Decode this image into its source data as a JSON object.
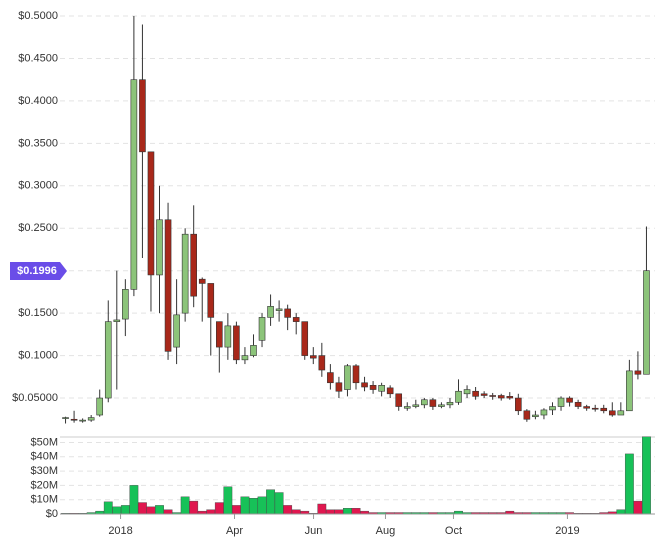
{
  "chart_data": {
    "type": "candlestick",
    "open": [
      0.026,
      0.025,
      0.023,
      0.024,
      0.03,
      0.05,
      0.14,
      0.143,
      0.178,
      0.425,
      0.34,
      0.195,
      0.26,
      0.11,
      0.15,
      0.243,
      0.19,
      0.185,
      0.14,
      0.11,
      0.135,
      0.095,
      0.1,
      0.118,
      0.145,
      0.153,
      0.155,
      0.145,
      0.14,
      0.1,
      0.1,
      0.08,
      0.068,
      0.06,
      0.088,
      0.068,
      0.065,
      0.058,
      0.062,
      0.055,
      0.038,
      0.04,
      0.042,
      0.048,
      0.04,
      0.042,
      0.045,
      0.055,
      0.058,
      0.055,
      0.053,
      0.053,
      0.052,
      0.05,
      0.035,
      0.028,
      0.03,
      0.036,
      0.04,
      0.05,
      0.045,
      0.04,
      0.038,
      0.038,
      0.035,
      0.03,
      0.035,
      0.082,
      0.078
    ],
    "high": [
      0.028,
      0.035,
      0.026,
      0.03,
      0.06,
      0.165,
      0.2,
      0.19,
      0.5,
      0.49,
      0.34,
      0.3,
      0.28,
      0.19,
      0.25,
      0.277,
      0.192,
      0.185,
      0.14,
      0.15,
      0.14,
      0.11,
      0.125,
      0.15,
      0.172,
      0.165,
      0.16,
      0.15,
      0.14,
      0.11,
      0.115,
      0.09,
      0.075,
      0.09,
      0.09,
      0.075,
      0.07,
      0.068,
      0.065,
      0.055,
      0.045,
      0.048,
      0.05,
      0.05,
      0.045,
      0.05,
      0.072,
      0.065,
      0.063,
      0.058,
      0.056,
      0.055,
      0.057,
      0.055,
      0.037,
      0.035,
      0.038,
      0.045,
      0.052,
      0.052,
      0.048,
      0.042,
      0.042,
      0.042,
      0.045,
      0.045,
      0.095,
      0.105,
      0.252
    ],
    "low": [
      0.02,
      0.021,
      0.021,
      0.022,
      0.028,
      0.045,
      0.06,
      0.123,
      0.17,
      0.215,
      0.152,
      0.15,
      0.095,
      0.09,
      0.14,
      0.157,
      0.14,
      0.1,
      0.08,
      0.095,
      0.09,
      0.09,
      0.098,
      0.11,
      0.135,
      0.14,
      0.13,
      0.125,
      0.095,
      0.09,
      0.075,
      0.06,
      0.05,
      0.052,
      0.06,
      0.058,
      0.055,
      0.052,
      0.05,
      0.035,
      0.035,
      0.038,
      0.038,
      0.036,
      0.038,
      0.038,
      0.042,
      0.05,
      0.048,
      0.05,
      0.048,
      0.047,
      0.048,
      0.03,
      0.022,
      0.025,
      0.025,
      0.03,
      0.035,
      0.04,
      0.037,
      0.035,
      0.034,
      0.032,
      0.028,
      0.03,
      0.035,
      0.072,
      0.078
    ],
    "close": [
      0.027,
      0.024,
      0.024,
      0.027,
      0.05,
      0.14,
      0.142,
      0.178,
      0.425,
      0.34,
      0.195,
      0.26,
      0.105,
      0.148,
      0.243,
      0.17,
      0.185,
      0.145,
      0.11,
      0.135,
      0.095,
      0.1,
      0.112,
      0.145,
      0.158,
      0.155,
      0.145,
      0.14,
      0.1,
      0.097,
      0.083,
      0.068,
      0.058,
      0.088,
      0.068,
      0.063,
      0.06,
      0.065,
      0.055,
      0.04,
      0.04,
      0.042,
      0.048,
      0.04,
      0.042,
      0.045,
      0.058,
      0.06,
      0.052,
      0.053,
      0.052,
      0.05,
      0.05,
      0.035,
      0.025,
      0.03,
      0.036,
      0.04,
      0.05,
      0.045,
      0.04,
      0.038,
      0.037,
      0.035,
      0.03,
      0.035,
      0.082,
      0.078,
      0.2
    ],
    "volume": [
      500000,
      500000,
      500000,
      1000000,
      2000000,
      8500000,
      5000000,
      6000000,
      20000000,
      8000000,
      5000000,
      6000000,
      3000000,
      1000000,
      12000000,
      9000000,
      2000000,
      3000000,
      8000000,
      19000000,
      6000000,
      12000000,
      11000000,
      12000000,
      17000000,
      15000000,
      6000000,
      3000000,
      2000000,
      500000,
      7000000,
      3000000,
      3000000,
      4000000,
      4000000,
      2000000,
      1000000,
      1000000,
      1000000,
      1000000,
      1000000,
      1000000,
      1000000,
      1000000,
      1000000,
      1000000,
      2000000,
      1000000,
      1000000,
      1000000,
      1000000,
      1000000,
      2000000,
      1000000,
      1000000,
      1000000,
      1000000,
      1000000,
      1000000,
      1000000,
      500000,
      500000,
      500000,
      1000000,
      1500000,
      3000000,
      42000000,
      9000000,
      54000000
    ],
    "up_color": "#8cc47a",
    "down_color": "#a8281a",
    "volume_up_color": "#17c158",
    "volume_down_color": "#e0174f",
    "xlim": [
      -1,
      69
    ],
    "xticks": [
      {
        "value": 6.44,
        "label": "2018"
      },
      {
        "value": 19.78,
        "label": "Apr"
      },
      {
        "value": 29.03,
        "label": "Jun"
      },
      {
        "value": 37.45,
        "label": "Aug"
      },
      {
        "value": 45.41,
        "label": "Oct"
      },
      {
        "value": 58.75,
        "label": "2019"
      }
    ],
    "ylim": [
      0.01,
      0.5
    ],
    "yticks": [
      {
        "value": 0.05,
        "label": "$0.05000"
      },
      {
        "value": 0.1,
        "label": "$0.1000"
      },
      {
        "value": 0.15,
        "label": "$0.1500"
      },
      {
        "value": 0.2,
        "label": "$0.2000"
      },
      {
        "value": 0.25,
        "label": "$0.2500"
      },
      {
        "value": 0.3,
        "label": "$0.3000"
      },
      {
        "value": 0.35,
        "label": "$0.3500"
      },
      {
        "value": 0.4,
        "label": "$0.4000"
      },
      {
        "value": 0.45,
        "label": "$0.4500"
      },
      {
        "value": 0.5,
        "label": "$0.5000"
      }
    ],
    "y2lim": [
      0,
      54500000
    ],
    "y2ticks": [
      {
        "value": 0,
        "label": "$0"
      },
      {
        "value": 10000000,
        "label": "$10M"
      },
      {
        "value": 20000000,
        "label": "$20M"
      },
      {
        "value": 30000000,
        "label": "$30M"
      },
      {
        "value": 40000000,
        "label": "$40M"
      },
      {
        "value": 50000000,
        "label": "$50M"
      }
    ],
    "price_marker": {
      "value": 0.1996,
      "label": "$0.1996"
    },
    "marker_color": "#6a4de8",
    "grid": true
  }
}
